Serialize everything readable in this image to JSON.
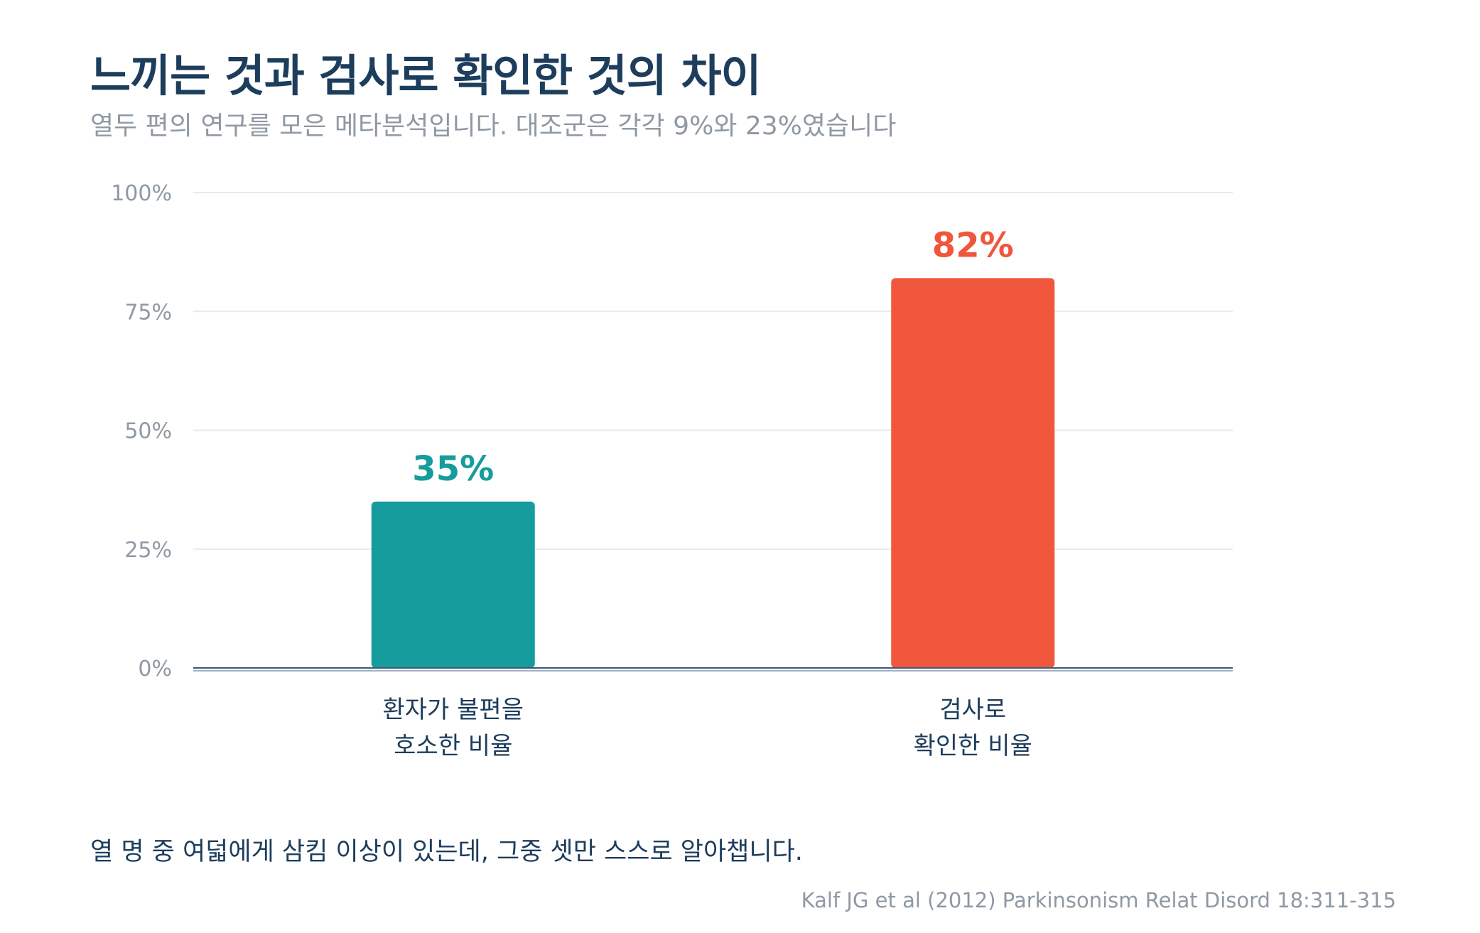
{
  "title": "느끼는 것과 검사로 확인한 것의 차이",
  "subtitle": "열두 편의 연구를 모은 메타분석입니다. 대조군은 각각 9%와 23%였습니다",
  "chart_data": {
    "type": "bar",
    "categories": [
      [
        "환자가 불편을",
        "호소한 비율"
      ],
      [
        "검사로",
        "확인한 비율"
      ]
    ],
    "values": [
      35,
      82
    ],
    "value_labels": [
      "35%",
      "82%"
    ],
    "colors": [
      "#169c9c",
      "#f0563c"
    ],
    "ylim": [
      0,
      100
    ],
    "yticks": [
      0,
      25,
      50,
      75,
      100
    ],
    "ytick_labels": [
      "0%",
      "25%",
      "50%",
      "75%",
      "100%"
    ],
    "grid": true,
    "xlabel": "",
    "ylabel": ""
  },
  "footnote": "열 명 중 여덟에게 삼킴 이상이 있는데, 그중 셋만 스스로 알아챕니다.",
  "source": "Kalf JG et al (2012) Parkinsonism Relat Disord 18:311-315"
}
